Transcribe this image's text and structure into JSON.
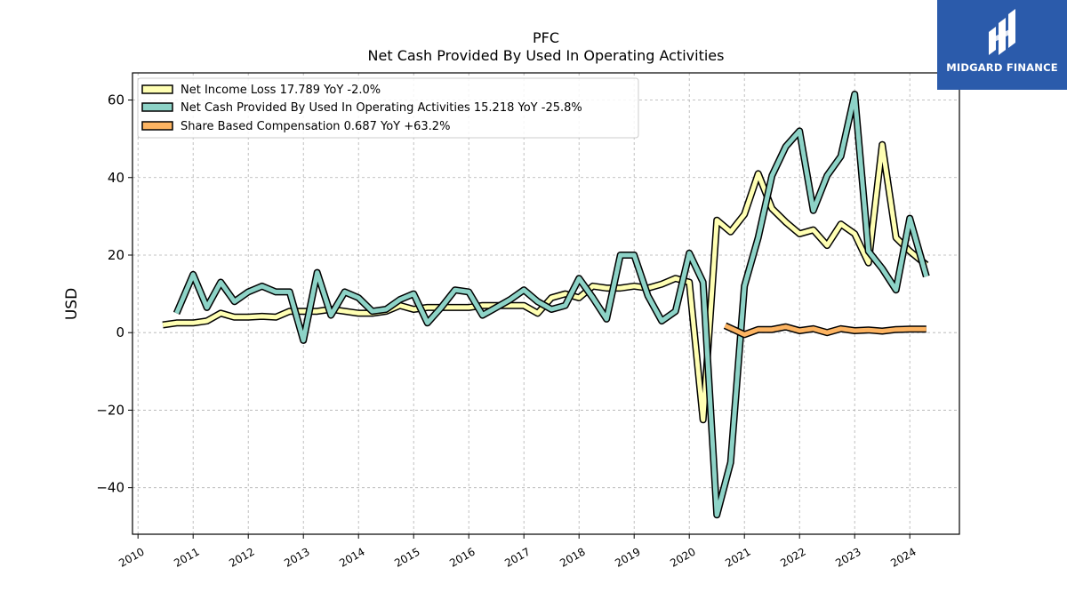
{
  "chart_data": {
    "type": "line",
    "title": "PFC",
    "subtitle": "Net Cash Provided By Used In Operating Activities",
    "ylabel": "USD",
    "xlabel": "",
    "xlim": [
      2009.9,
      2024.9
    ],
    "ylim": [
      -52,
      67
    ],
    "y_ticks": [
      -40,
      -20,
      0,
      20,
      40,
      60
    ],
    "y_tick_labels": [
      "−40",
      "−20",
      "0",
      "20",
      "40",
      "60"
    ],
    "x_ticks": [
      2010,
      2011,
      2012,
      2013,
      2014,
      2015,
      2016,
      2017,
      2018,
      2019,
      2020,
      2021,
      2022,
      2023,
      2024
    ],
    "x_tick_labels": [
      "2010",
      "2011",
      "2012",
      "2013",
      "2014",
      "2015",
      "2016",
      "2017",
      "2018",
      "2019",
      "2020",
      "2021",
      "2022",
      "2023",
      "2024"
    ],
    "grid": true,
    "legend_position": "top-left",
    "series": [
      {
        "name": "Net Income Loss",
        "legend_label": "Net Income Loss  17.789 YoY -2.0%",
        "color": "#ffffb3",
        "points": [
          [
            2010.45,
            2
          ],
          [
            2010.7,
            2.5
          ],
          [
            2011.0,
            2.5
          ],
          [
            2011.25,
            3
          ],
          [
            2011.5,
            5
          ],
          [
            2011.75,
            4
          ],
          [
            2012.0,
            4
          ],
          [
            2012.25,
            4.2
          ],
          [
            2012.5,
            4
          ],
          [
            2012.75,
            5.5
          ],
          [
            2013.0,
            5.5
          ],
          [
            2013.25,
            5.5
          ],
          [
            2013.5,
            6
          ],
          [
            2013.75,
            5.5
          ],
          [
            2014.0,
            5
          ],
          [
            2014.25,
            5
          ],
          [
            2014.5,
            5.5
          ],
          [
            2014.75,
            7
          ],
          [
            2015.0,
            6
          ],
          [
            2015.25,
            6.5
          ],
          [
            2015.5,
            6.5
          ],
          [
            2015.75,
            6.5
          ],
          [
            2016.0,
            6.5
          ],
          [
            2016.25,
            7
          ],
          [
            2016.5,
            7
          ],
          [
            2016.75,
            7
          ],
          [
            2017.0,
            7
          ],
          [
            2017.25,
            5
          ],
          [
            2017.5,
            9
          ],
          [
            2017.75,
            10
          ],
          [
            2018.0,
            9
          ],
          [
            2018.25,
            12
          ],
          [
            2018.5,
            11.5
          ],
          [
            2018.75,
            11.5
          ],
          [
            2019.0,
            12
          ],
          [
            2019.25,
            11.5
          ],
          [
            2019.5,
            12.5
          ],
          [
            2019.75,
            14
          ],
          [
            2020.0,
            13
          ],
          [
            2020.25,
            -22.5
          ],
          [
            2020.5,
            29
          ],
          [
            2020.75,
            26
          ],
          [
            2021.0,
            30.5
          ],
          [
            2021.25,
            41
          ],
          [
            2021.5,
            32
          ],
          [
            2021.75,
            28.5
          ],
          [
            2022.0,
            25.5
          ],
          [
            2022.25,
            26.5
          ],
          [
            2022.5,
            22.5
          ],
          [
            2022.75,
            28
          ],
          [
            2023.0,
            25.5
          ],
          [
            2023.25,
            18
          ],
          [
            2023.5,
            48.5
          ],
          [
            2023.75,
            24.5
          ],
          [
            2024.0,
            21
          ],
          [
            2024.3,
            17.5
          ]
        ]
      },
      {
        "name": "Net Cash Provided By Used In Operating Activities",
        "legend_label": "Net Cash Provided By Used In Operating Activities  15.218 YoY -25.8%",
        "color": "#8dd3c7",
        "points": [
          [
            2010.7,
            5
          ],
          [
            2011.0,
            15
          ],
          [
            2011.25,
            6.5
          ],
          [
            2011.5,
            13
          ],
          [
            2011.75,
            8
          ],
          [
            2012.0,
            10.5
          ],
          [
            2012.25,
            12
          ],
          [
            2012.5,
            10.5
          ],
          [
            2012.75,
            10.5
          ],
          [
            2013.0,
            -2
          ],
          [
            2013.25,
            15.5
          ],
          [
            2013.5,
            4.5
          ],
          [
            2013.75,
            10.5
          ],
          [
            2014.0,
            9
          ],
          [
            2014.25,
            5.5
          ],
          [
            2014.5,
            6
          ],
          [
            2014.75,
            8.5
          ],
          [
            2015.0,
            10
          ],
          [
            2015.25,
            2.5
          ],
          [
            2015.5,
            6.5
          ],
          [
            2015.75,
            11
          ],
          [
            2016.0,
            10.5
          ],
          [
            2016.25,
            4.5
          ],
          [
            2016.5,
            6.5
          ],
          [
            2016.75,
            8.5
          ],
          [
            2017.0,
            11
          ],
          [
            2017.25,
            8
          ],
          [
            2017.5,
            6
          ],
          [
            2017.75,
            7
          ],
          [
            2018.0,
            14
          ],
          [
            2018.25,
            9
          ],
          [
            2018.5,
            3.5
          ],
          [
            2018.75,
            20
          ],
          [
            2019.0,
            20
          ],
          [
            2019.25,
            9.5
          ],
          [
            2019.5,
            3
          ],
          [
            2019.75,
            5.5
          ],
          [
            2020.0,
            20.5
          ],
          [
            2020.25,
            13
          ],
          [
            2020.5,
            -47
          ],
          [
            2020.75,
            -33.5
          ],
          [
            2021.0,
            12
          ],
          [
            2021.25,
            24.5
          ],
          [
            2021.5,
            40.5
          ],
          [
            2021.75,
            48
          ],
          [
            2022.0,
            52
          ],
          [
            2022.25,
            31.5
          ],
          [
            2022.5,
            40.5
          ],
          [
            2022.75,
            45.5
          ],
          [
            2023.0,
            61.5
          ],
          [
            2023.25,
            21
          ],
          [
            2023.5,
            16.5
          ],
          [
            2023.75,
            11
          ],
          [
            2024.0,
            29.5
          ],
          [
            2024.3,
            14.5
          ]
        ]
      },
      {
        "name": "Share Based Compensation",
        "legend_label": "Share Based Compensation  0.687 YoY +63.2%",
        "color": "#fdb462",
        "points": [
          [
            2020.65,
            1.8
          ],
          [
            2020.85,
            0.5
          ],
          [
            2021.0,
            -0.5
          ],
          [
            2021.25,
            0.8
          ],
          [
            2021.5,
            0.8
          ],
          [
            2021.75,
            1.5
          ],
          [
            2022.0,
            0.5
          ],
          [
            2022.25,
            1
          ],
          [
            2022.5,
            0
          ],
          [
            2022.75,
            1
          ],
          [
            2023.0,
            0.5
          ],
          [
            2023.25,
            0.7
          ],
          [
            2023.5,
            0.4
          ],
          [
            2023.75,
            0.8
          ],
          [
            2024.0,
            0.9
          ],
          [
            2024.3,
            0.9
          ]
        ]
      }
    ]
  },
  "brand": {
    "name": "MIDGARD FINANCE",
    "color": "#2b5bab"
  }
}
